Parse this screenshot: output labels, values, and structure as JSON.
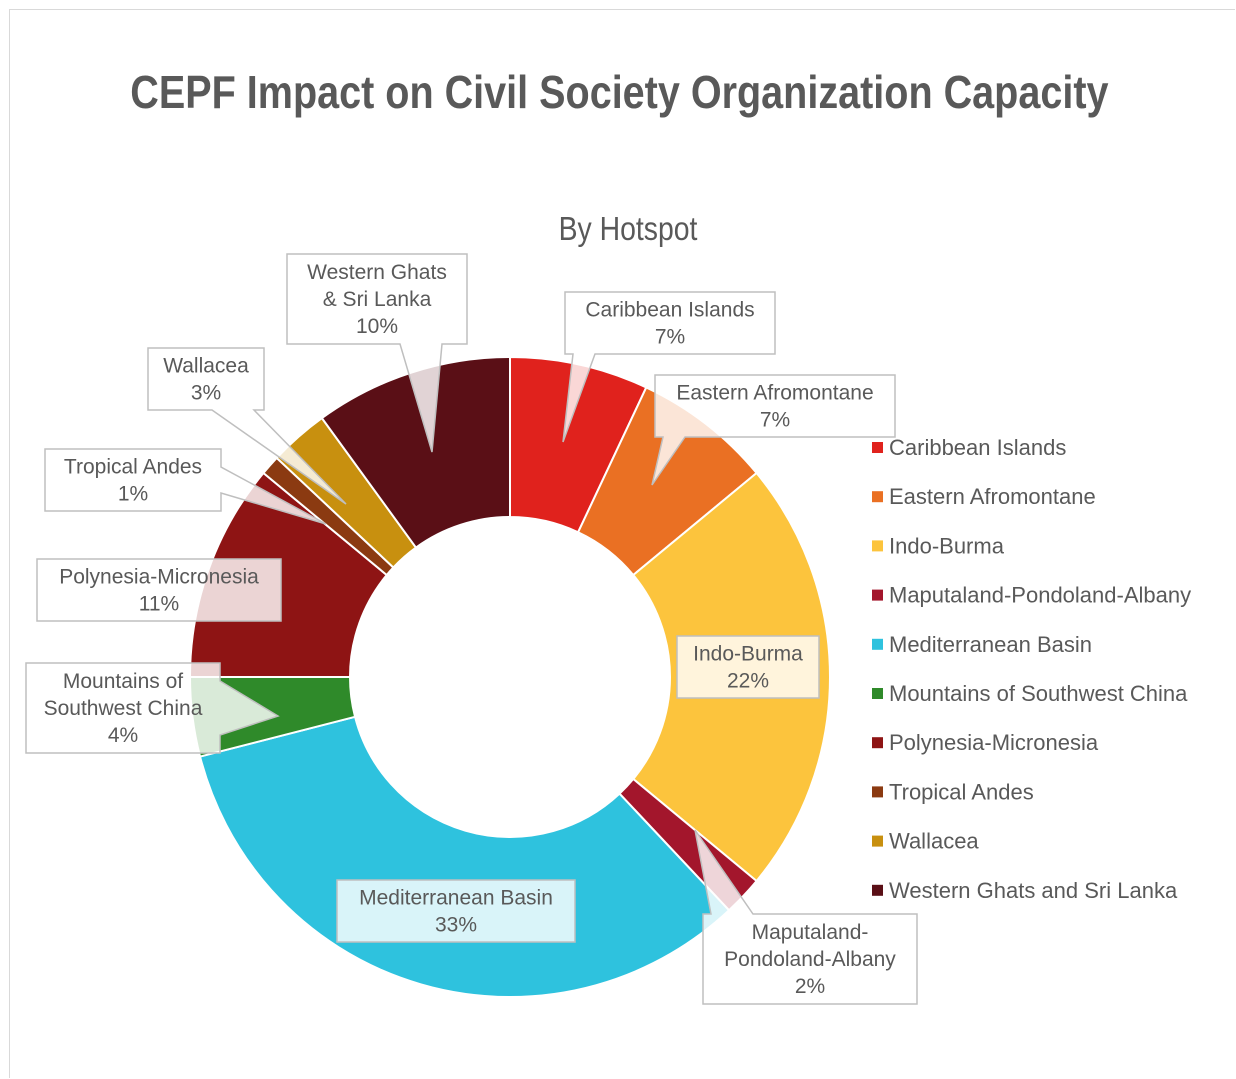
{
  "chart_data": {
    "type": "pie",
    "variant": "donut",
    "title": "CEPF Impact on Civil Society Organization Capacity",
    "subtitle": "By Hotspot",
    "legend_position": "right",
    "categories": [
      "Caribbean Islands",
      "Eastern Afromontane",
      "Indo-Burma",
      "Maputaland-Pondoland-Albany",
      "Mediterranean Basin",
      "Mountains of Southwest China",
      "Polynesia-Micronesia",
      "Tropical Andes",
      "Wallacea",
      "Western Ghats and Sri Lanka"
    ],
    "values": [
      7,
      7,
      22,
      2,
      33,
      4,
      11,
      1,
      3,
      10
    ],
    "colors": [
      "#e0221d",
      "#ea7023",
      "#fcc43d",
      "#a3162c",
      "#2ec2de",
      "#2f8a2a",
      "#8e1414",
      "#8b3a11",
      "#c8900f",
      "#5a0f16"
    ],
    "data_labels": [
      {
        "lines": [
          "Caribbean Islands",
          "7%"
        ]
      },
      {
        "lines": [
          "Eastern Afromontane",
          "7%"
        ]
      },
      {
        "lines": [
          "Indo-Burma",
          "22%"
        ]
      },
      {
        "lines": [
          "Maputaland-",
          "Pondoland-Albany",
          "2%"
        ]
      },
      {
        "lines": [
          "Mediterranean Basin",
          "33%"
        ]
      },
      {
        "lines": [
          "Mountains of",
          "Southwest China",
          "4%"
        ]
      },
      {
        "lines": [
          "Polynesia-Micronesia",
          "11%"
        ]
      },
      {
        "lines": [
          "Tropical Andes",
          "1%"
        ]
      },
      {
        "lines": [
          "Wallacea",
          "3%"
        ]
      },
      {
        "lines": [
          "Western Ghats",
          "& Sri Lanka",
          "10%"
        ]
      }
    ]
  }
}
